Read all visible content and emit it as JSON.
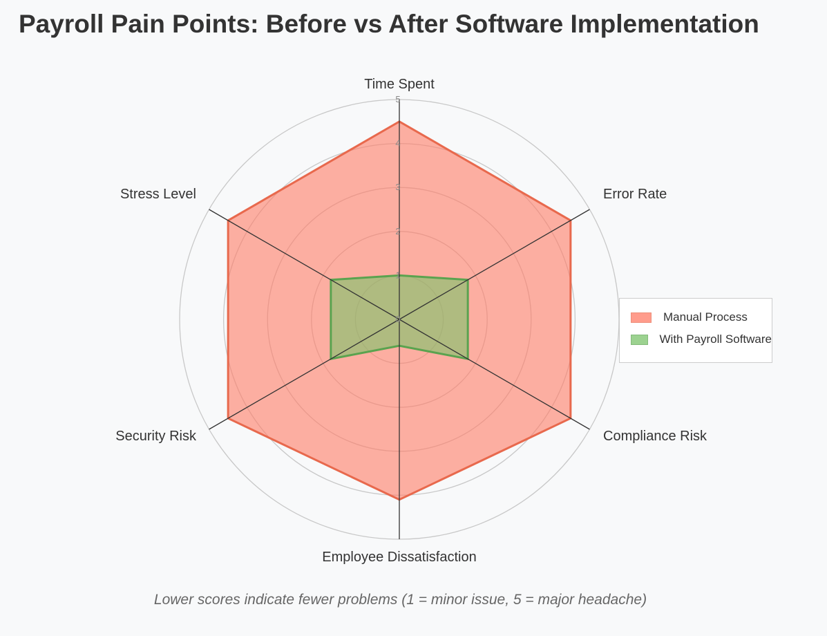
{
  "title": "Payroll Pain Points: Before vs After Software Implementation",
  "subtitle": "Lower scores indicate fewer problems (1 = minor issue, 5 = major headache)",
  "chart_data": {
    "type": "radar",
    "axes": [
      "Time Spent",
      "Error Rate",
      "Compliance Risk",
      "Employee Dissatisfaction",
      "Security Risk",
      "Stress Level"
    ],
    "range": [
      0,
      5
    ],
    "ticks": [
      "0",
      "1",
      "2",
      "3",
      "4",
      "5"
    ],
    "series": [
      {
        "name": "Manual Process",
        "values": [
          4.5,
          4.5,
          4.5,
          4.1,
          4.5,
          4.5
        ],
        "stroke": "#e8694d",
        "fill": "#ff7c66"
      },
      {
        "name": "With Payroll Software",
        "values": [
          1.0,
          1.8,
          1.8,
          0.6,
          1.8,
          1.8
        ],
        "stroke": "#5aa34f",
        "fill": "#7cc36b"
      }
    ],
    "legend_position": "right",
    "grid": true
  }
}
